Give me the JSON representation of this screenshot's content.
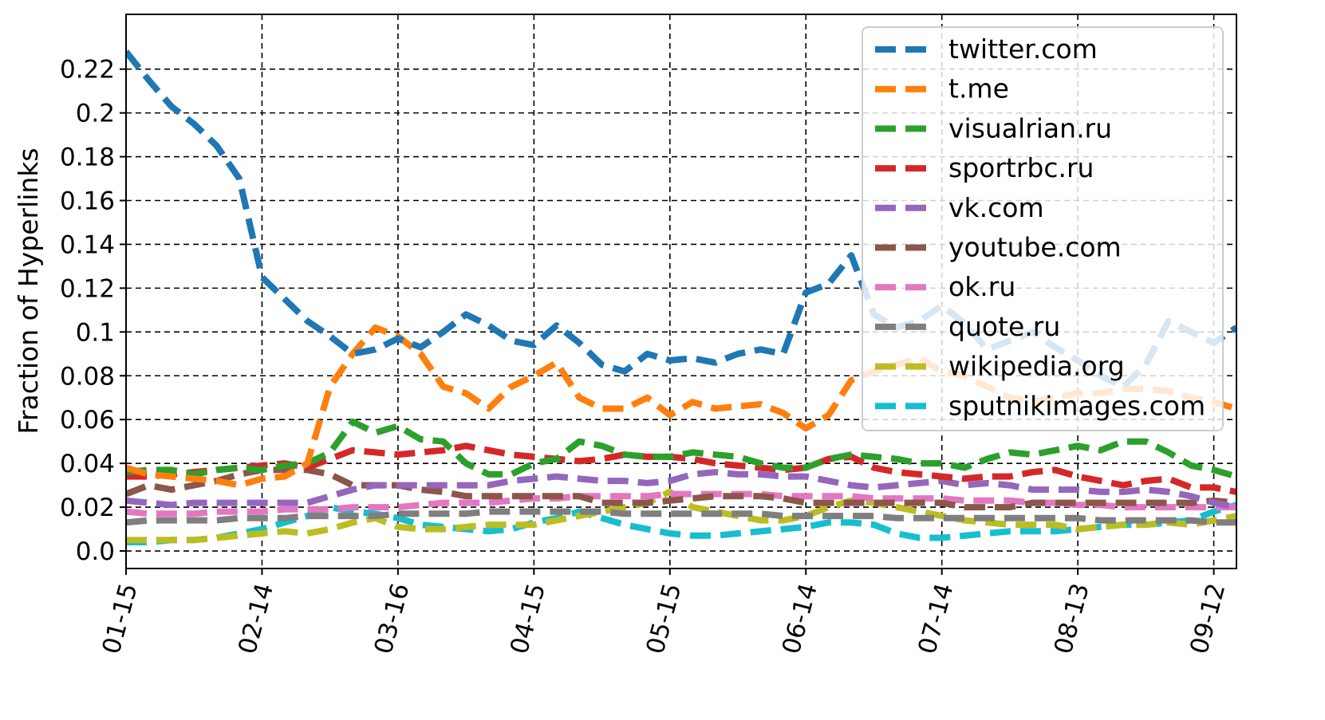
{
  "chart_data": {
    "type": "line",
    "title": "",
    "xlabel": "",
    "ylabel": "Fraction of Hyperlinks",
    "x_ticks": [
      "01-15",
      "02-14",
      "03-16",
      "04-15",
      "05-15",
      "06-14",
      "07-14",
      "08-13",
      "09-12"
    ],
    "x_tick_days": [
      0,
      30,
      60,
      90,
      120,
      150,
      180,
      210,
      240
    ],
    "xlim": [
      0,
      245
    ],
    "y_ticks": [
      "0.0",
      "0.02",
      "0.04",
      "0.06",
      "0.08",
      "0.1",
      "0.12",
      "0.14",
      "0.16",
      "0.18",
      "0.2",
      "0.22"
    ],
    "y_tick_values": [
      0.0,
      0.02,
      0.04,
      0.06,
      0.08,
      0.1,
      0.12,
      0.14,
      0.16,
      0.18,
      0.2,
      0.22
    ],
    "ylim": [
      -0.008,
      0.245
    ],
    "grid": true,
    "legend_position": "top-right",
    "x": [
      0,
      5,
      10,
      15,
      20,
      25,
      30,
      35,
      40,
      45,
      50,
      55,
      60,
      65,
      70,
      75,
      80,
      85,
      90,
      95,
      100,
      105,
      110,
      115,
      120,
      125,
      130,
      135,
      140,
      145,
      150,
      155,
      160,
      165,
      170,
      175,
      180,
      185,
      190,
      195,
      200,
      205,
      210,
      215,
      220,
      225,
      230,
      235,
      240,
      245
    ],
    "series": [
      {
        "name": "twitter.com",
        "color": "#1f77b4",
        "values": [
          0.228,
          0.215,
          0.203,
          0.195,
          0.185,
          0.17,
          0.125,
          0.115,
          0.105,
          0.098,
          0.09,
          0.092,
          0.097,
          0.093,
          0.1,
          0.108,
          0.103,
          0.096,
          0.094,
          0.103,
          0.095,
          0.085,
          0.082,
          0.09,
          0.087,
          0.088,
          0.086,
          0.09,
          0.092,
          0.09,
          0.118,
          0.122,
          0.135,
          0.108,
          0.102,
          0.105,
          0.112,
          0.104,
          0.092,
          0.096,
          0.1,
          0.093,
          0.087,
          0.08,
          0.075,
          0.085,
          0.105,
          0.1,
          0.095,
          0.102
        ]
      },
      {
        "name": "t.me",
        "color": "#ff7f0e",
        "values": [
          0.038,
          0.035,
          0.034,
          0.033,
          0.032,
          0.03,
          0.033,
          0.034,
          0.04,
          0.075,
          0.09,
          0.102,
          0.098,
          0.09,
          0.075,
          0.072,
          0.065,
          0.075,
          0.08,
          0.086,
          0.07,
          0.065,
          0.065,
          0.07,
          0.062,
          0.068,
          0.065,
          0.066,
          0.067,
          0.063,
          0.056,
          0.062,
          0.078,
          0.082,
          0.085,
          0.088,
          0.082,
          0.08,
          0.075,
          0.07,
          0.068,
          0.07,
          0.072,
          0.072,
          0.074,
          0.074,
          0.073,
          0.07,
          0.068,
          0.065
        ]
      },
      {
        "name": "visualrian.ru",
        "color": "#2ca02c",
        "values": [
          0.036,
          0.037,
          0.037,
          0.035,
          0.037,
          0.038,
          0.037,
          0.039,
          0.04,
          0.045,
          0.059,
          0.054,
          0.057,
          0.051,
          0.05,
          0.04,
          0.035,
          0.035,
          0.04,
          0.042,
          0.05,
          0.048,
          0.044,
          0.043,
          0.043,
          0.045,
          0.044,
          0.043,
          0.04,
          0.038,
          0.038,
          0.042,
          0.044,
          0.043,
          0.042,
          0.04,
          0.04,
          0.038,
          0.042,
          0.045,
          0.044,
          0.046,
          0.048,
          0.046,
          0.05,
          0.05,
          0.045,
          0.039,
          0.037,
          0.034
        ]
      },
      {
        "name": "sportrbc.ru",
        "color": "#d62728",
        "values": [
          0.034,
          0.034,
          0.035,
          0.036,
          0.037,
          0.038,
          0.039,
          0.04,
          0.038,
          0.042,
          0.046,
          0.045,
          0.044,
          0.045,
          0.046,
          0.048,
          0.046,
          0.044,
          0.043,
          0.042,
          0.041,
          0.042,
          0.044,
          0.043,
          0.043,
          0.042,
          0.04,
          0.039,
          0.038,
          0.037,
          0.038,
          0.042,
          0.043,
          0.038,
          0.036,
          0.035,
          0.034,
          0.033,
          0.034,
          0.034,
          0.036,
          0.037,
          0.034,
          0.032,
          0.03,
          0.032,
          0.033,
          0.029,
          0.029,
          0.027
        ]
      },
      {
        "name": "vk.com",
        "color": "#9467bd",
        "values": [
          0.023,
          0.022,
          0.021,
          0.022,
          0.022,
          0.022,
          0.022,
          0.022,
          0.022,
          0.025,
          0.028,
          0.03,
          0.03,
          0.03,
          0.03,
          0.03,
          0.03,
          0.032,
          0.033,
          0.034,
          0.033,
          0.032,
          0.032,
          0.031,
          0.032,
          0.035,
          0.036,
          0.035,
          0.035,
          0.034,
          0.034,
          0.032,
          0.03,
          0.029,
          0.03,
          0.031,
          0.032,
          0.03,
          0.031,
          0.03,
          0.028,
          0.028,
          0.028,
          0.027,
          0.027,
          0.028,
          0.027,
          0.025,
          0.022,
          0.02
        ]
      },
      {
        "name": "youtube.com",
        "color": "#8c564b",
        "values": [
          0.026,
          0.03,
          0.028,
          0.03,
          0.032,
          0.035,
          0.037,
          0.037,
          0.037,
          0.035,
          0.03,
          0.03,
          0.03,
          0.028,
          0.027,
          0.025,
          0.025,
          0.025,
          0.025,
          0.025,
          0.025,
          0.022,
          0.022,
          0.022,
          0.023,
          0.024,
          0.025,
          0.025,
          0.025,
          0.024,
          0.022,
          0.022,
          0.022,
          0.022,
          0.022,
          0.022,
          0.022,
          0.02,
          0.02,
          0.02,
          0.022,
          0.022,
          0.022,
          0.022,
          0.022,
          0.022,
          0.022,
          0.022,
          0.023,
          0.022
        ]
      },
      {
        "name": "ok.ru",
        "color": "#e377c2",
        "values": [
          0.018,
          0.017,
          0.017,
          0.017,
          0.018,
          0.018,
          0.018,
          0.019,
          0.019,
          0.019,
          0.02,
          0.02,
          0.02,
          0.021,
          0.022,
          0.022,
          0.022,
          0.023,
          0.024,
          0.024,
          0.025,
          0.025,
          0.025,
          0.025,
          0.026,
          0.026,
          0.026,
          0.026,
          0.026,
          0.025,
          0.025,
          0.025,
          0.025,
          0.024,
          0.024,
          0.024,
          0.024,
          0.023,
          0.023,
          0.023,
          0.022,
          0.022,
          0.021,
          0.021,
          0.02,
          0.02,
          0.02,
          0.02,
          0.02,
          0.02
        ]
      },
      {
        "name": "quote.ru",
        "color": "#7f7f7f",
        "values": [
          0.013,
          0.014,
          0.014,
          0.014,
          0.014,
          0.015,
          0.015,
          0.015,
          0.016,
          0.016,
          0.016,
          0.016,
          0.017,
          0.017,
          0.017,
          0.017,
          0.018,
          0.018,
          0.018,
          0.018,
          0.018,
          0.018,
          0.017,
          0.017,
          0.017,
          0.017,
          0.017,
          0.017,
          0.017,
          0.016,
          0.016,
          0.016,
          0.016,
          0.016,
          0.015,
          0.015,
          0.015,
          0.015,
          0.015,
          0.015,
          0.015,
          0.015,
          0.015,
          0.014,
          0.014,
          0.014,
          0.014,
          0.014,
          0.013,
          0.013
        ]
      },
      {
        "name": "wikipedia.org",
        "color": "#bcbd22",
        "values": [
          0.005,
          0.005,
          0.005,
          0.005,
          0.006,
          0.007,
          0.008,
          0.009,
          0.008,
          0.01,
          0.013,
          0.015,
          0.011,
          0.01,
          0.01,
          0.011,
          0.012,
          0.012,
          0.012,
          0.014,
          0.016,
          0.018,
          0.02,
          0.022,
          0.027,
          0.02,
          0.018,
          0.016,
          0.014,
          0.014,
          0.016,
          0.02,
          0.023,
          0.022,
          0.02,
          0.018,
          0.016,
          0.014,
          0.013,
          0.012,
          0.012,
          0.012,
          0.01,
          0.011,
          0.012,
          0.012,
          0.013,
          0.012,
          0.014,
          0.016
        ]
      },
      {
        "name": "sputnikimages.com",
        "color": "#17becf",
        "values": [
          0.004,
          0.004,
          0.005,
          0.005,
          0.006,
          0.008,
          0.01,
          0.013,
          0.016,
          0.02,
          0.018,
          0.017,
          0.015,
          0.012,
          0.011,
          0.01,
          0.009,
          0.01,
          0.013,
          0.015,
          0.018,
          0.015,
          0.012,
          0.01,
          0.008,
          0.007,
          0.007,
          0.008,
          0.009,
          0.01,
          0.011,
          0.013,
          0.013,
          0.012,
          0.008,
          0.006,
          0.006,
          0.007,
          0.008,
          0.009,
          0.009,
          0.009,
          0.01,
          0.011,
          0.012,
          0.012,
          0.013,
          0.014,
          0.018,
          0.021
        ]
      }
    ]
  }
}
